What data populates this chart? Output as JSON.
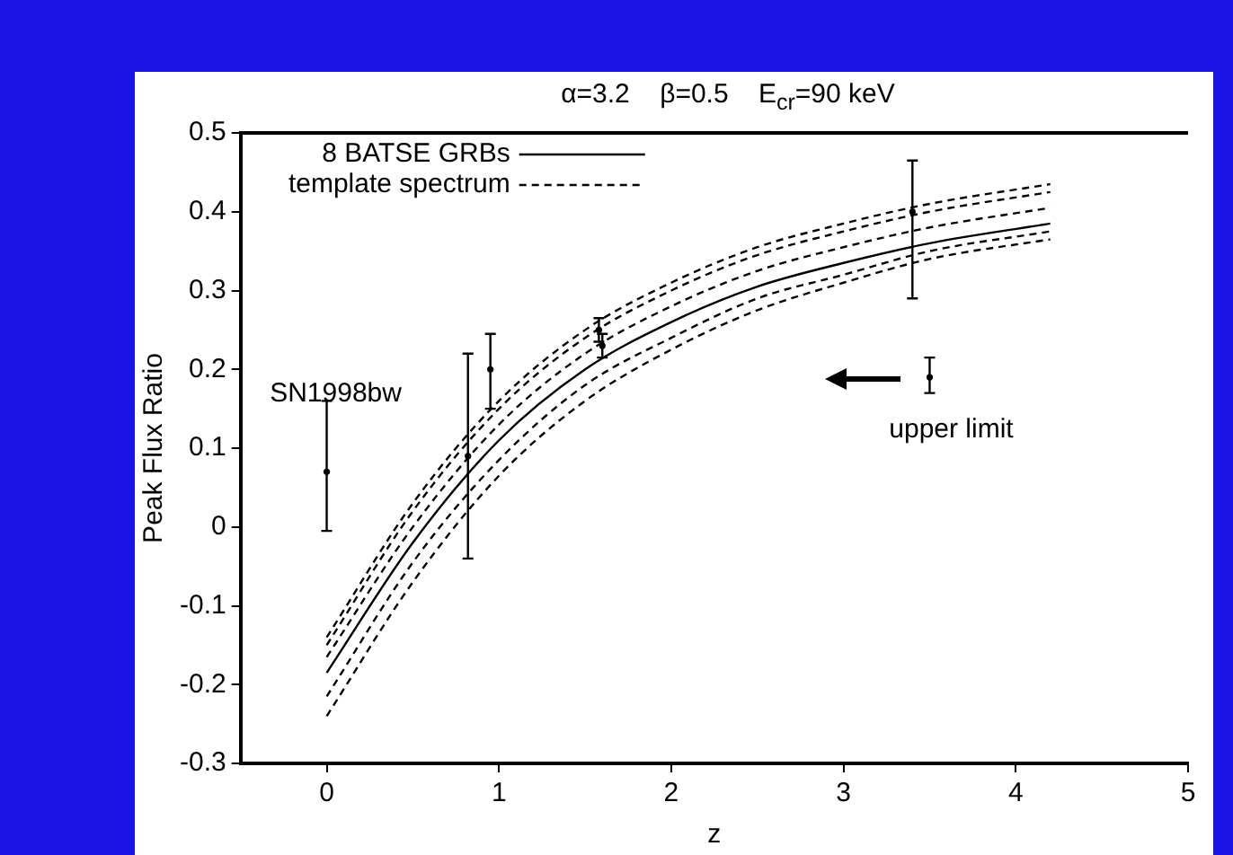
{
  "chart_data": {
    "type": "scatter",
    "title": "α=3.2    β=0.5    E$_{cr}$=90 keV",
    "xlabel": "z",
    "ylabel": "Peak Flux Ratio",
    "xlim": [
      -0.5,
      5
    ],
    "xticks": [
      0,
      1,
      2,
      3,
      4,
      5
    ],
    "ylim": [
      -0.3,
      0.5
    ],
    "yticks": [
      -0.3,
      -0.2,
      -0.1,
      0,
      0.1,
      0.2,
      0.3,
      0.4,
      0.5
    ],
    "grid": false,
    "legend": "top left",
    "marker": "none",
    "annotations": [
      {
        "text": "SN1998bw",
        "x": 0,
        "y": 0.07
      },
      {
        "text": "upper limit",
        "x": 3.5,
        "y": 0.19
      }
    ],
    "series": [
      {
        "name": "8 BATSE GRBs",
        "type": "scatter",
        "marker": "circle",
        "color": "#000000",
        "x": [
          0,
          0.82,
          0.95,
          1.58,
          1.6,
          3.4,
          3.5
        ],
        "values": [
          0.07,
          0.09,
          0.2,
          0.25,
          0.23,
          0.4,
          0.19
        ],
        "errors": [
          [
            -0.005,
            0.16
          ],
          [
            -0.04,
            0.22
          ],
          [
            0.15,
            0.245
          ],
          [
            0.235,
            0.265
          ],
          [
            0.215,
            0.245
          ],
          [
            0.29,
            0.465
          ],
          [
            0.17,
            0.215
          ]
        ]
      },
      {
        "name": "template spectrum",
        "type": "line",
        "line_style": "dashed",
        "color": "#000000",
        "x": [
          0,
          0.5,
          1,
          1.5,
          2,
          2.5,
          3,
          3.5,
          4.2
        ],
        "values": [
          -0.14,
          0.03,
          0.16,
          0.25,
          0.31,
          0.355,
          0.385,
          0.41,
          0.435
        ]
      },
      {
        "type": "line",
        "line_style": "dashed",
        "color": "#000000",
        "x": [
          0,
          0.5,
          1,
          1.5,
          2,
          2.5,
          3,
          3.5,
          4.2
        ],
        "values": [
          -0.15,
          0.02,
          0.15,
          0.24,
          0.3,
          0.345,
          0.375,
          0.4,
          0.425
        ]
      },
      {
        "type": "line",
        "line_style": "dashed",
        "color": "#000000",
        "x": [
          0,
          0.5,
          1,
          1.5,
          2,
          2.5,
          3,
          3.5,
          4.2
        ],
        "values": [
          -0.165,
          0,
          0.13,
          0.22,
          0.28,
          0.325,
          0.355,
          0.38,
          0.405
        ]
      },
      {
        "type": "line",
        "line_style": "solid",
        "color": "#000000",
        "x": [
          0,
          0.5,
          1,
          1.5,
          2,
          2.5,
          3,
          3.5,
          4.2
        ],
        "values": [
          -0.185,
          -0.02,
          0.11,
          0.2,
          0.26,
          0.305,
          0.335,
          0.36,
          0.385
        ]
      },
      {
        "type": "line",
        "line_style": "dashed",
        "color": "#000000",
        "x": [
          0,
          0.5,
          1,
          1.5,
          2,
          2.5,
          3,
          3.5,
          4.2
        ],
        "values": [
          -0.215,
          -0.045,
          0.085,
          0.18,
          0.24,
          0.29,
          0.32,
          0.35,
          0.375
        ]
      },
      {
        "type": "line",
        "line_style": "dashed",
        "color": "#000000",
        "x": [
          0,
          0.5,
          1,
          1.5,
          2,
          2.5,
          3,
          3.5,
          4.2
        ],
        "values": [
          -0.24,
          -0.07,
          0.065,
          0.16,
          0.225,
          0.275,
          0.31,
          0.34,
          0.365
        ]
      }
    ]
  }
}
